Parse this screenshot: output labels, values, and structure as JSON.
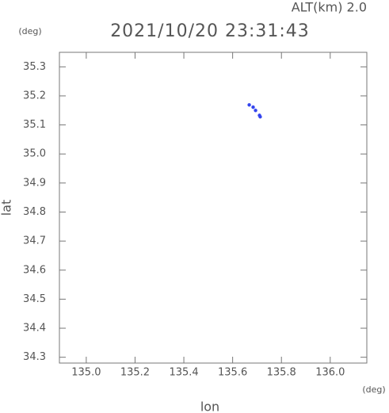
{
  "chart_data": {
    "type": "scatter",
    "title": "2021/10/20 23:31:43",
    "subtitle": "ALT(km) 2.0",
    "xlabel": "lon",
    "ylabel": "lat",
    "xunit": "(deg)",
    "yunit": "(deg)",
    "color": "#3344ee",
    "x": [
      135.668,
      135.684,
      135.694,
      135.71,
      135.713
    ],
    "values": [
      35.169,
      35.161,
      35.15,
      35.133,
      35.128
    ],
    "xlim": [
      134.89,
      136.15
    ],
    "ylim": [
      34.28,
      35.35
    ],
    "xticks": [
      {
        "value": 135.0,
        "label": "135.0"
      },
      135.2,
      135.4,
      135.6,
      135.8,
      {
        "value": 136.0,
        "label": "136.0"
      }
    ],
    "yticks": [
      34.3,
      34.4,
      34.5,
      34.6,
      34.7,
      34.8,
      34.9,
      {
        "value": 35.0,
        "label": "35.0"
      },
      35.1,
      35.2,
      35.3
    ]
  }
}
